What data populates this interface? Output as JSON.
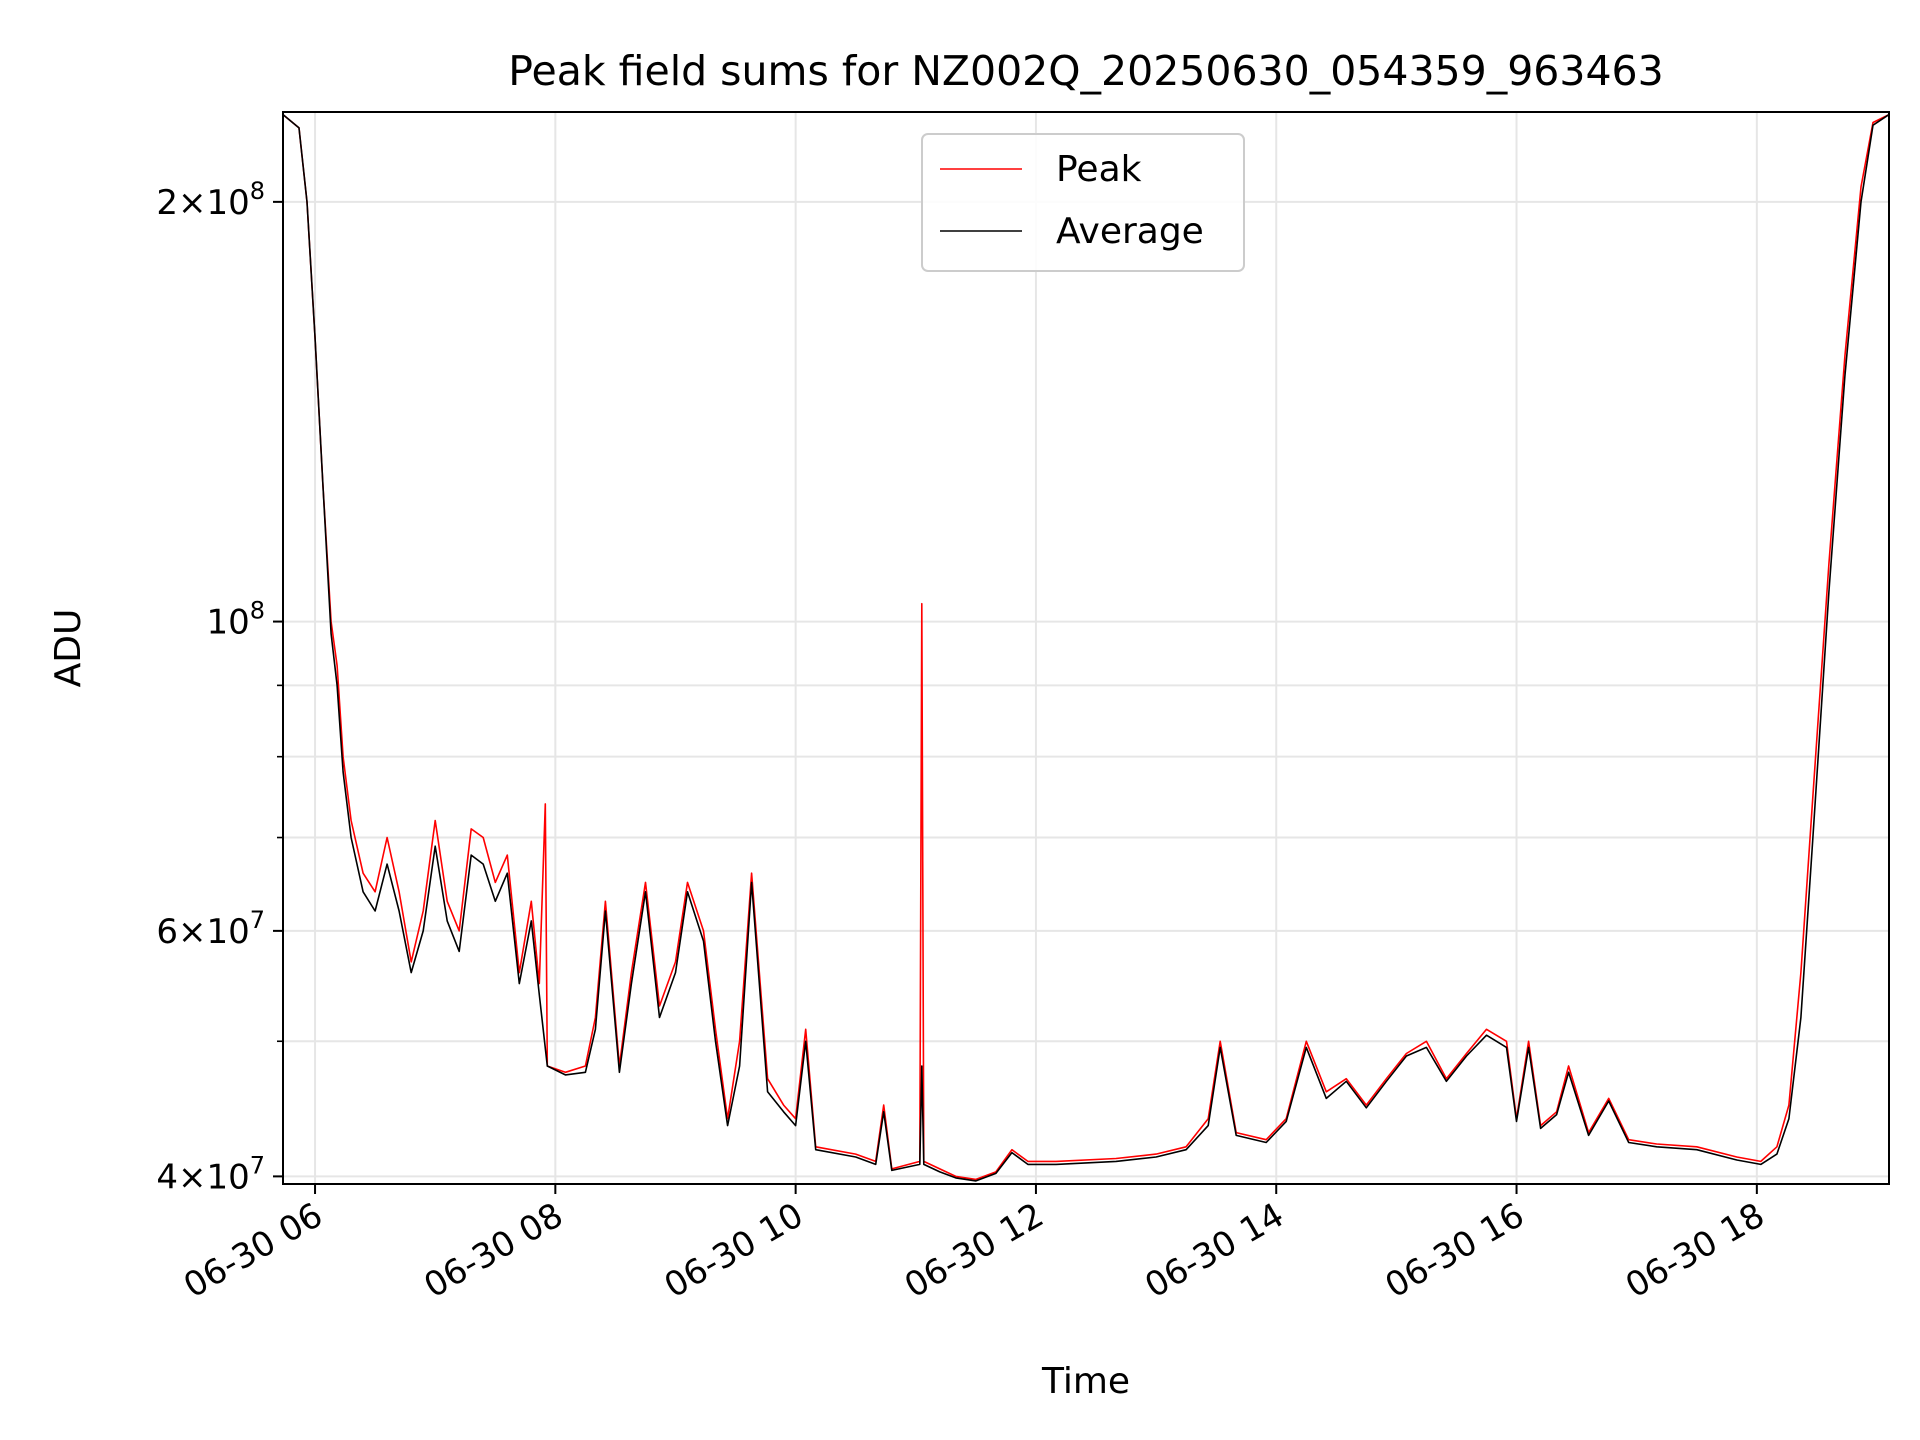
{
  "chart_data": {
    "type": "line",
    "title": "Peak field sums for NZ002Q_20250630_054359_963463",
    "xlabel": "Time",
    "ylabel": "ADU",
    "yscale": "log",
    "ylim": [
      39500000,
      232000000
    ],
    "xlim": [
      "2025-06-30 05:44",
      "2025-06-30 19:06"
    ],
    "grid": true,
    "legend": {
      "position": "upper center",
      "entries": [
        "Peak",
        "Average"
      ]
    },
    "x_ticks": [
      "06-30 06",
      "06-30 08",
      "06-30 10",
      "06-30 12",
      "06-30 14",
      "06-30 16",
      "06-30 18"
    ],
    "x_tick_times": [
      "2025-06-30 06:00",
      "2025-06-30 08:00",
      "2025-06-30 10:00",
      "2025-06-30 12:00",
      "2025-06-30 14:00",
      "2025-06-30 16:00",
      "2025-06-30 18:00"
    ],
    "y_ticks": [
      {
        "value": 40000000,
        "mantissa": "4",
        "exponent": "7"
      },
      {
        "value": 60000000,
        "mantissa": "6",
        "exponent": "7"
      },
      {
        "value": 100000000,
        "mantissa": "",
        "exponent": "8"
      },
      {
        "value": 200000000,
        "mantissa": "2",
        "exponent": "8"
      }
    ],
    "y_minor_ticks": [
      50000000,
      70000000,
      80000000,
      90000000
    ],
    "series": [
      {
        "name": "Peak",
        "color": "#ff0000",
        "points": [
          [
            "2025-06-30 05:44",
            231000000
          ],
          [
            "2025-06-30 05:52",
            226000000
          ],
          [
            "2025-06-30 05:56",
            200000000
          ],
          [
            "2025-06-30 06:00",
            160000000
          ],
          [
            "2025-06-30 06:04",
            125000000
          ],
          [
            "2025-06-30 06:08",
            100000000
          ],
          [
            "2025-06-30 06:11",
            93000000
          ],
          [
            "2025-06-30 06:14",
            80000000
          ],
          [
            "2025-06-30 06:18",
            72000000
          ],
          [
            "2025-06-30 06:24",
            66000000
          ],
          [
            "2025-06-30 06:30",
            64000000
          ],
          [
            "2025-06-30 06:36",
            70000000
          ],
          [
            "2025-06-30 06:42",
            64000000
          ],
          [
            "2025-06-30 06:48",
            57000000
          ],
          [
            "2025-06-30 06:54",
            62000000
          ],
          [
            "2025-06-30 07:00",
            72000000
          ],
          [
            "2025-06-30 07:06",
            63000000
          ],
          [
            "2025-06-30 07:12",
            60000000
          ],
          [
            "2025-06-30 07:18",
            71000000
          ],
          [
            "2025-06-30 07:24",
            70000000
          ],
          [
            "2025-06-30 07:30",
            65000000
          ],
          [
            "2025-06-30 07:36",
            68000000
          ],
          [
            "2025-06-30 07:42",
            56000000
          ],
          [
            "2025-06-30 07:48",
            63000000
          ],
          [
            "2025-06-30 07:52",
            55000000
          ],
          [
            "2025-06-30 07:55",
            74000000
          ],
          [
            "2025-06-30 07:56",
            48000000
          ],
          [
            "2025-06-30 08:05",
            47500000
          ],
          [
            "2025-06-30 08:15",
            48000000
          ],
          [
            "2025-06-30 08:20",
            52000000
          ],
          [
            "2025-06-30 08:25",
            63000000
          ],
          [
            "2025-06-30 08:32",
            48000000
          ],
          [
            "2025-06-30 08:38",
            56000000
          ],
          [
            "2025-06-30 08:45",
            65000000
          ],
          [
            "2025-06-30 08:52",
            53000000
          ],
          [
            "2025-06-30 09:00",
            57000000
          ],
          [
            "2025-06-30 09:06",
            65000000
          ],
          [
            "2025-06-30 09:14",
            60000000
          ],
          [
            "2025-06-30 09:20",
            51000000
          ],
          [
            "2025-06-30 09:26",
            44000000
          ],
          [
            "2025-06-30 09:32",
            50000000
          ],
          [
            "2025-06-30 09:38",
            66000000
          ],
          [
            "2025-06-30 09:46",
            47000000
          ],
          [
            "2025-06-30 09:54",
            45000000
          ],
          [
            "2025-06-30 10:00",
            44000000
          ],
          [
            "2025-06-30 10:05",
            51000000
          ],
          [
            "2025-06-30 10:10",
            42000000
          ],
          [
            "2025-06-30 10:30",
            41500000
          ],
          [
            "2025-06-30 10:40",
            41000000
          ],
          [
            "2025-06-30 10:44",
            45000000
          ],
          [
            "2025-06-30 10:48",
            40500000
          ],
          [
            "2025-06-30 11:02",
            41000000
          ],
          [
            "2025-06-30 11:03",
            103000000
          ],
          [
            "2025-06-30 11:04",
            41000000
          ],
          [
            "2025-06-30 11:12",
            40500000
          ],
          [
            "2025-06-30 11:20",
            40000000
          ],
          [
            "2025-06-30 11:30",
            39800000
          ],
          [
            "2025-06-30 11:40",
            40300000
          ],
          [
            "2025-06-30 11:48",
            41800000
          ],
          [
            "2025-06-30 11:56",
            41000000
          ],
          [
            "2025-06-30 12:10",
            41000000
          ],
          [
            "2025-06-30 12:40",
            41200000
          ],
          [
            "2025-06-30 13:00",
            41500000
          ],
          [
            "2025-06-30 13:15",
            42000000
          ],
          [
            "2025-06-30 13:26",
            44000000
          ],
          [
            "2025-06-30 13:32",
            50000000
          ],
          [
            "2025-06-30 13:40",
            43000000
          ],
          [
            "2025-06-30 13:55",
            42500000
          ],
          [
            "2025-06-30 14:05",
            44000000
          ],
          [
            "2025-06-30 14:15",
            50000000
          ],
          [
            "2025-06-30 14:25",
            46000000
          ],
          [
            "2025-06-30 14:35",
            47000000
          ],
          [
            "2025-06-30 14:45",
            45000000
          ],
          [
            "2025-06-30 14:55",
            47000000
          ],
          [
            "2025-06-30 15:05",
            49000000
          ],
          [
            "2025-06-30 15:15",
            50000000
          ],
          [
            "2025-06-30 15:25",
            47000000
          ],
          [
            "2025-06-30 15:35",
            49000000
          ],
          [
            "2025-06-30 15:45",
            51000000
          ],
          [
            "2025-06-30 15:55",
            50000000
          ],
          [
            "2025-06-30 16:00",
            44000000
          ],
          [
            "2025-06-30 16:06",
            50000000
          ],
          [
            "2025-06-30 16:12",
            43500000
          ],
          [
            "2025-06-30 16:20",
            44500000
          ],
          [
            "2025-06-30 16:26",
            48000000
          ],
          [
            "2025-06-30 16:36",
            43000000
          ],
          [
            "2025-06-30 16:46",
            45500000
          ],
          [
            "2025-06-30 16:56",
            42500000
          ],
          [
            "2025-06-30 17:10",
            42200000
          ],
          [
            "2025-06-30 17:30",
            42000000
          ],
          [
            "2025-06-30 17:50",
            41300000
          ],
          [
            "2025-06-30 18:02",
            41000000
          ],
          [
            "2025-06-30 18:10",
            42000000
          ],
          [
            "2025-06-30 18:16",
            45000000
          ],
          [
            "2025-06-30 18:22",
            56000000
          ],
          [
            "2025-06-30 18:28",
            75000000
          ],
          [
            "2025-06-30 18:36",
            110000000
          ],
          [
            "2025-06-30 18:44",
            155000000
          ],
          [
            "2025-06-30 18:52",
            205000000
          ],
          [
            "2025-06-30 18:58",
            228000000
          ],
          [
            "2025-06-30 19:06",
            231000000
          ]
        ]
      },
      {
        "name": "Average",
        "color": "#000000",
        "points": [
          [
            "2025-06-30 05:44",
            231000000
          ],
          [
            "2025-06-30 05:52",
            226000000
          ],
          [
            "2025-06-30 05:56",
            200000000
          ],
          [
            "2025-06-30 06:00",
            160000000
          ],
          [
            "2025-06-30 06:04",
            125000000
          ],
          [
            "2025-06-30 06:08",
            98000000
          ],
          [
            "2025-06-30 06:11",
            90000000
          ],
          [
            "2025-06-30 06:14",
            78000000
          ],
          [
            "2025-06-30 06:18",
            70000000
          ],
          [
            "2025-06-30 06:24",
            64000000
          ],
          [
            "2025-06-30 06:30",
            62000000
          ],
          [
            "2025-06-30 06:36",
            67000000
          ],
          [
            "2025-06-30 06:42",
            62000000
          ],
          [
            "2025-06-30 06:48",
            56000000
          ],
          [
            "2025-06-30 06:54",
            60000000
          ],
          [
            "2025-06-30 07:00",
            69000000
          ],
          [
            "2025-06-30 07:06",
            61000000
          ],
          [
            "2025-06-30 07:12",
            58000000
          ],
          [
            "2025-06-30 07:18",
            68000000
          ],
          [
            "2025-06-30 07:24",
            67000000
          ],
          [
            "2025-06-30 07:30",
            63000000
          ],
          [
            "2025-06-30 07:36",
            66000000
          ],
          [
            "2025-06-30 07:42",
            55000000
          ],
          [
            "2025-06-30 07:48",
            61000000
          ],
          [
            "2025-06-30 07:52",
            54000000
          ],
          [
            "2025-06-30 07:56",
            48000000
          ],
          [
            "2025-06-30 08:05",
            47300000
          ],
          [
            "2025-06-30 08:15",
            47500000
          ],
          [
            "2025-06-30 08:20",
            51000000
          ],
          [
            "2025-06-30 08:25",
            62000000
          ],
          [
            "2025-06-30 08:32",
            47500000
          ],
          [
            "2025-06-30 08:38",
            55000000
          ],
          [
            "2025-06-30 08:45",
            64000000
          ],
          [
            "2025-06-30 08:52",
            52000000
          ],
          [
            "2025-06-30 09:00",
            56000000
          ],
          [
            "2025-06-30 09:06",
            64000000
          ],
          [
            "2025-06-30 09:14",
            59000000
          ],
          [
            "2025-06-30 09:20",
            50000000
          ],
          [
            "2025-06-30 09:26",
            43500000
          ],
          [
            "2025-06-30 09:32",
            48000000
          ],
          [
            "2025-06-30 09:38",
            65000000
          ],
          [
            "2025-06-30 09:46",
            46000000
          ],
          [
            "2025-06-30 09:54",
            44500000
          ],
          [
            "2025-06-30 10:00",
            43500000
          ],
          [
            "2025-06-30 10:05",
            50000000
          ],
          [
            "2025-06-30 10:10",
            41800000
          ],
          [
            "2025-06-30 10:30",
            41300000
          ],
          [
            "2025-06-30 10:40",
            40800000
          ],
          [
            "2025-06-30 10:44",
            44500000
          ],
          [
            "2025-06-30 10:48",
            40400000
          ],
          [
            "2025-06-30 11:02",
            40800000
          ],
          [
            "2025-06-30 11:03",
            48000000
          ],
          [
            "2025-06-30 11:04",
            40800000
          ],
          [
            "2025-06-30 11:12",
            40300000
          ],
          [
            "2025-06-30 11:20",
            39900000
          ],
          [
            "2025-06-30 11:30",
            39700000
          ],
          [
            "2025-06-30 11:40",
            40200000
          ],
          [
            "2025-06-30 11:48",
            41600000
          ],
          [
            "2025-06-30 11:56",
            40800000
          ],
          [
            "2025-06-30 12:10",
            40800000
          ],
          [
            "2025-06-30 12:40",
            41000000
          ],
          [
            "2025-06-30 13:00",
            41300000
          ],
          [
            "2025-06-30 13:15",
            41800000
          ],
          [
            "2025-06-30 13:26",
            43500000
          ],
          [
            "2025-06-30 13:32",
            49500000
          ],
          [
            "2025-06-30 13:40",
            42800000
          ],
          [
            "2025-06-30 13:55",
            42300000
          ],
          [
            "2025-06-30 14:05",
            43800000
          ],
          [
            "2025-06-30 14:15",
            49500000
          ],
          [
            "2025-06-30 14:25",
            45500000
          ],
          [
            "2025-06-30 14:35",
            46800000
          ],
          [
            "2025-06-30 14:45",
            44800000
          ],
          [
            "2025-06-30 14:55",
            46800000
          ],
          [
            "2025-06-30 15:05",
            48800000
          ],
          [
            "2025-06-30 15:15",
            49500000
          ],
          [
            "2025-06-30 15:25",
            46800000
          ],
          [
            "2025-06-30 15:35",
            48800000
          ],
          [
            "2025-06-30 15:45",
            50500000
          ],
          [
            "2025-06-30 15:55",
            49500000
          ],
          [
            "2025-06-30 16:00",
            43800000
          ],
          [
            "2025-06-30 16:06",
            49500000
          ],
          [
            "2025-06-30 16:12",
            43300000
          ],
          [
            "2025-06-30 16:20",
            44300000
          ],
          [
            "2025-06-30 16:26",
            47500000
          ],
          [
            "2025-06-30 16:36",
            42800000
          ],
          [
            "2025-06-30 16:46",
            45300000
          ],
          [
            "2025-06-30 16:56",
            42300000
          ],
          [
            "2025-06-30 17:10",
            42000000
          ],
          [
            "2025-06-30 17:30",
            41800000
          ],
          [
            "2025-06-30 17:50",
            41100000
          ],
          [
            "2025-06-30 18:02",
            40800000
          ],
          [
            "2025-06-30 18:10",
            41500000
          ],
          [
            "2025-06-30 18:16",
            44000000
          ],
          [
            "2025-06-30 18:22",
            52000000
          ],
          [
            "2025-06-30 18:28",
            70000000
          ],
          [
            "2025-06-30 18:36",
            105000000
          ],
          [
            "2025-06-30 18:44",
            150000000
          ],
          [
            "2025-06-30 18:52",
            200000000
          ],
          [
            "2025-06-30 18:58",
            227000000
          ],
          [
            "2025-06-30 19:06",
            231000000
          ]
        ]
      }
    ]
  }
}
